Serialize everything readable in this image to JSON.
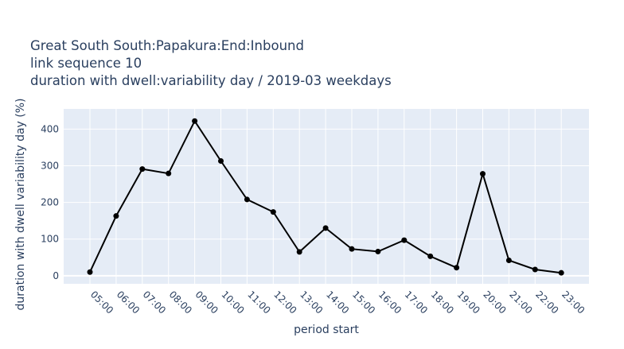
{
  "chart_data": {
    "type": "line",
    "title_lines": [
      "Great South South:Papakura:End:Inbound",
      "link sequence 10",
      "duration with dwell:variability day / 2019-03 weekdays"
    ],
    "xlabel": "period start",
    "ylabel": "duration with dwell variability day (%)",
    "categories": [
      "05:00",
      "06:00",
      "07:00",
      "08:00",
      "09:00",
      "10:00",
      "11:00",
      "12:00",
      "13:00",
      "14:00",
      "15:00",
      "16:00",
      "17:00",
      "18:00",
      "19:00",
      "20:00",
      "21:00",
      "22:00",
      "23:00"
    ],
    "values": [
      10,
      163,
      291,
      279,
      422,
      313,
      208,
      174,
      65,
      130,
      73,
      66,
      97,
      53,
      22,
      278,
      42,
      17,
      8
    ],
    "ylim": [
      -22,
      455
    ],
    "yticks": [
      0,
      100,
      200,
      300,
      400
    ],
    "grid": true,
    "plot_bg": "#e5ecf6",
    "line_color": "#000000"
  }
}
